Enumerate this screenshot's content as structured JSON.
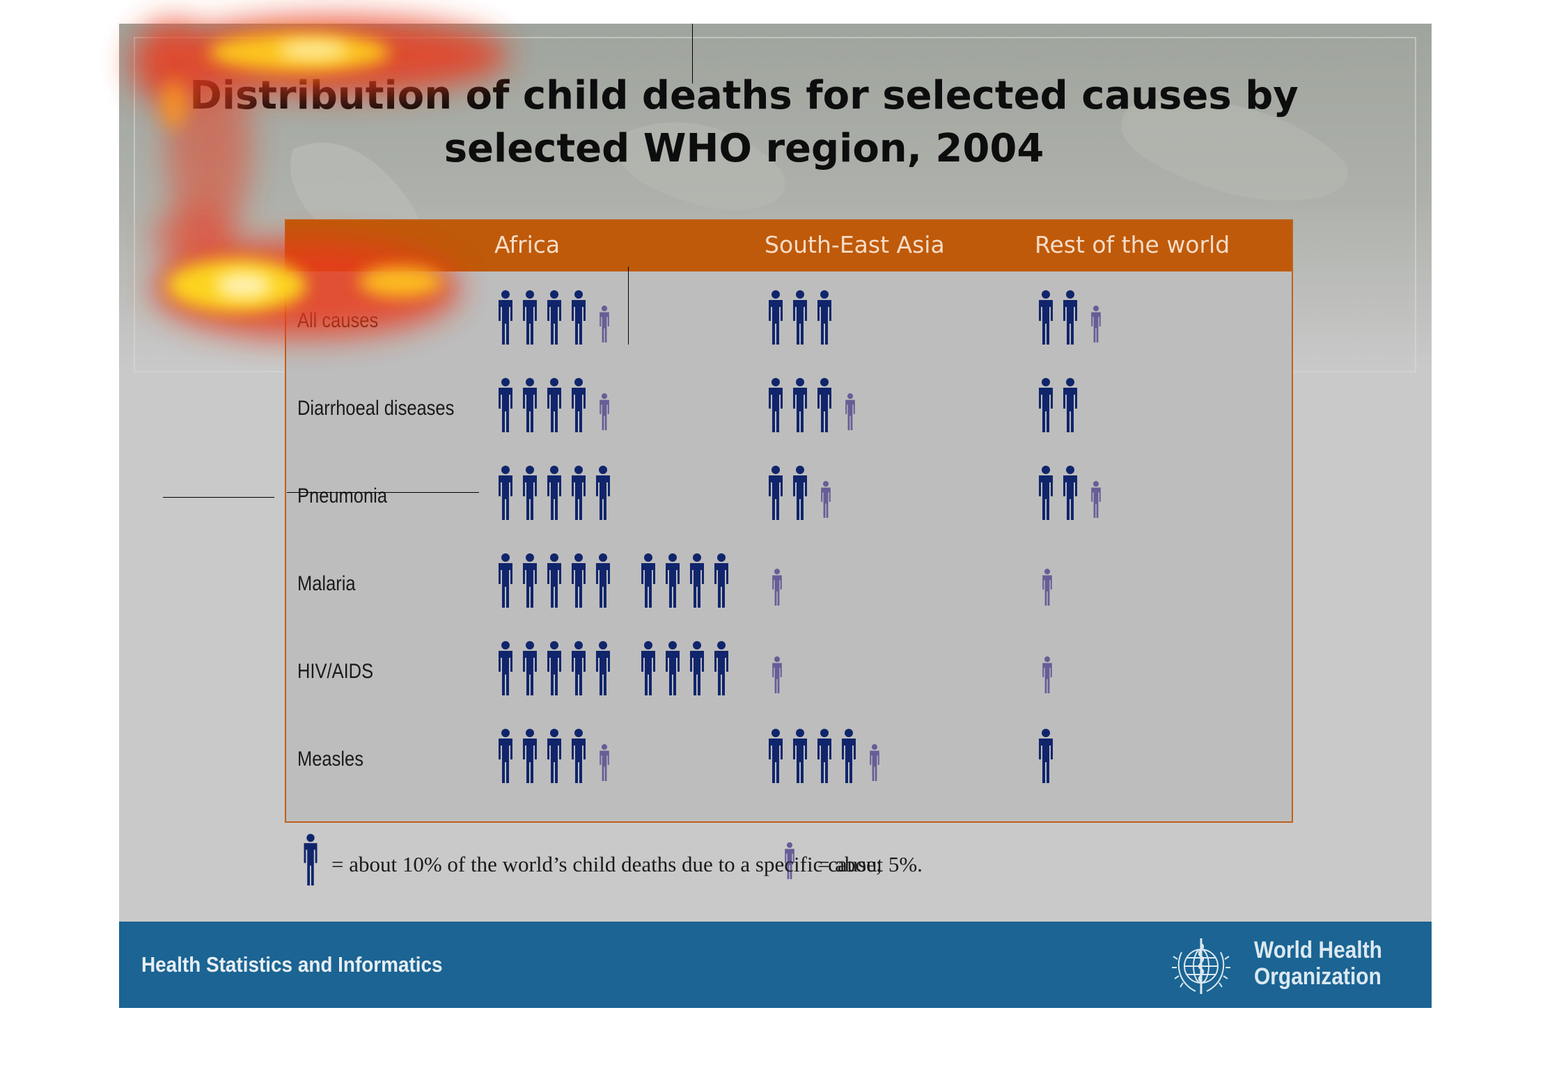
{
  "title_lines": [
    "Distribution of child deaths for selected causes by",
    "selected WHO region, 2004"
  ],
  "columns": [
    "Africa",
    "South-East Asia",
    "Rest of the world"
  ],
  "chart_data": {
    "type": "table",
    "title": "Distribution of child deaths for selected causes by selected WHO region, 2004",
    "unit_note": "1 full figure = about 10% of the world's child deaths due to a specific cause; 1 small figure = about 5%",
    "columns": [
      "Africa",
      "South-East Asia",
      "Rest of the world"
    ],
    "rows": [
      {
        "label": "All causes",
        "values_percent": [
          45,
          30,
          25
        ]
      },
      {
        "label": "Diarrhoeal diseases",
        "values_percent": [
          45,
          35,
          20
        ]
      },
      {
        "label": "Pneumonia",
        "values_percent": [
          50,
          25,
          25
        ]
      },
      {
        "label": "Malaria",
        "values_percent": [
          90,
          5,
          5
        ]
      },
      {
        "label": "HIV/AIDS",
        "values_percent": [
          90,
          5,
          5
        ]
      },
      {
        "label": "Measles",
        "values_percent": [
          45,
          45,
          10
        ]
      }
    ]
  },
  "legend": {
    "full_text": "= about 10% of the world’s child deaths due to a specific cause;",
    "half_text": "= about 5%."
  },
  "footer": {
    "left_text": "Health Statistics and Informatics",
    "org_line1": "World Health",
    "org_line2": "Organization"
  },
  "colors": {
    "header_bar": "#bf5a0a",
    "figure_full": "#10256b",
    "figure_half": "#665e96",
    "footer_bar": "#1b6493"
  }
}
